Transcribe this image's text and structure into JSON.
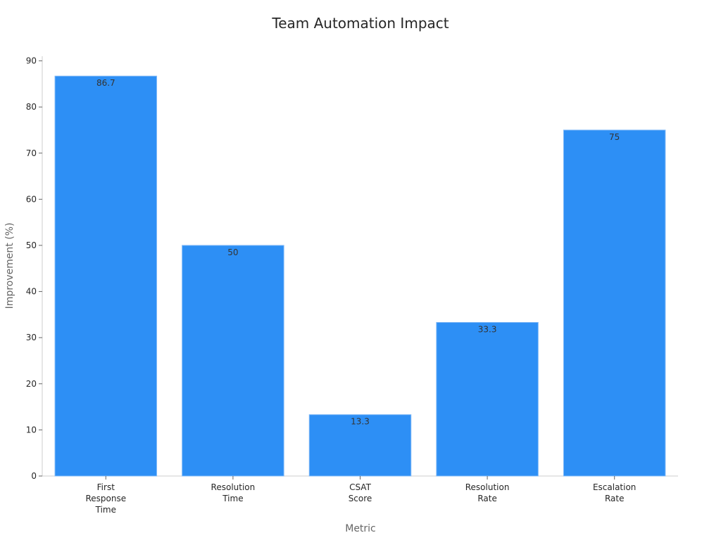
{
  "chart_data": {
    "type": "bar",
    "title": "Team Automation Impact",
    "x_label": "Metric",
    "y_label": "Improvement (%)",
    "categories": [
      "First Response Time",
      "Resolution Time",
      "CSAT Score",
      "Resolution Rate",
      "Escalation Rate"
    ],
    "values": [
      86.7,
      50,
      13.3,
      33.3,
      75
    ],
    "color": "#2d8ff5",
    "ylim": [
      0,
      91
    ],
    "yticks": [
      0,
      10,
      20,
      30,
      40,
      50,
      60,
      70,
      80,
      90
    ],
    "grid": false
  }
}
